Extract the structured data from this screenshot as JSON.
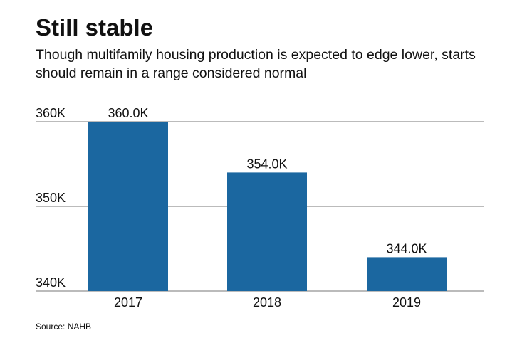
{
  "chart_data": {
    "type": "bar",
    "title": "Still stable",
    "subtitle": "Though multifamily housing production is expected to edge lower, starts should remain in a range considered normal",
    "categories": [
      "2017",
      "2018",
      "2019"
    ],
    "values": [
      360.0,
      354.0,
      344.0
    ],
    "data_labels": [
      "360.0K",
      "354.0K",
      "344.0K"
    ],
    "xlabel": "",
    "ylabel": "",
    "ylim": [
      340,
      360
    ],
    "yticks": [
      340,
      350,
      360
    ],
    "ytick_labels": [
      "340K",
      "350K",
      "360K"
    ],
    "grid": true,
    "bar_color": "#1b67a0",
    "source": "Source: NAHB"
  }
}
